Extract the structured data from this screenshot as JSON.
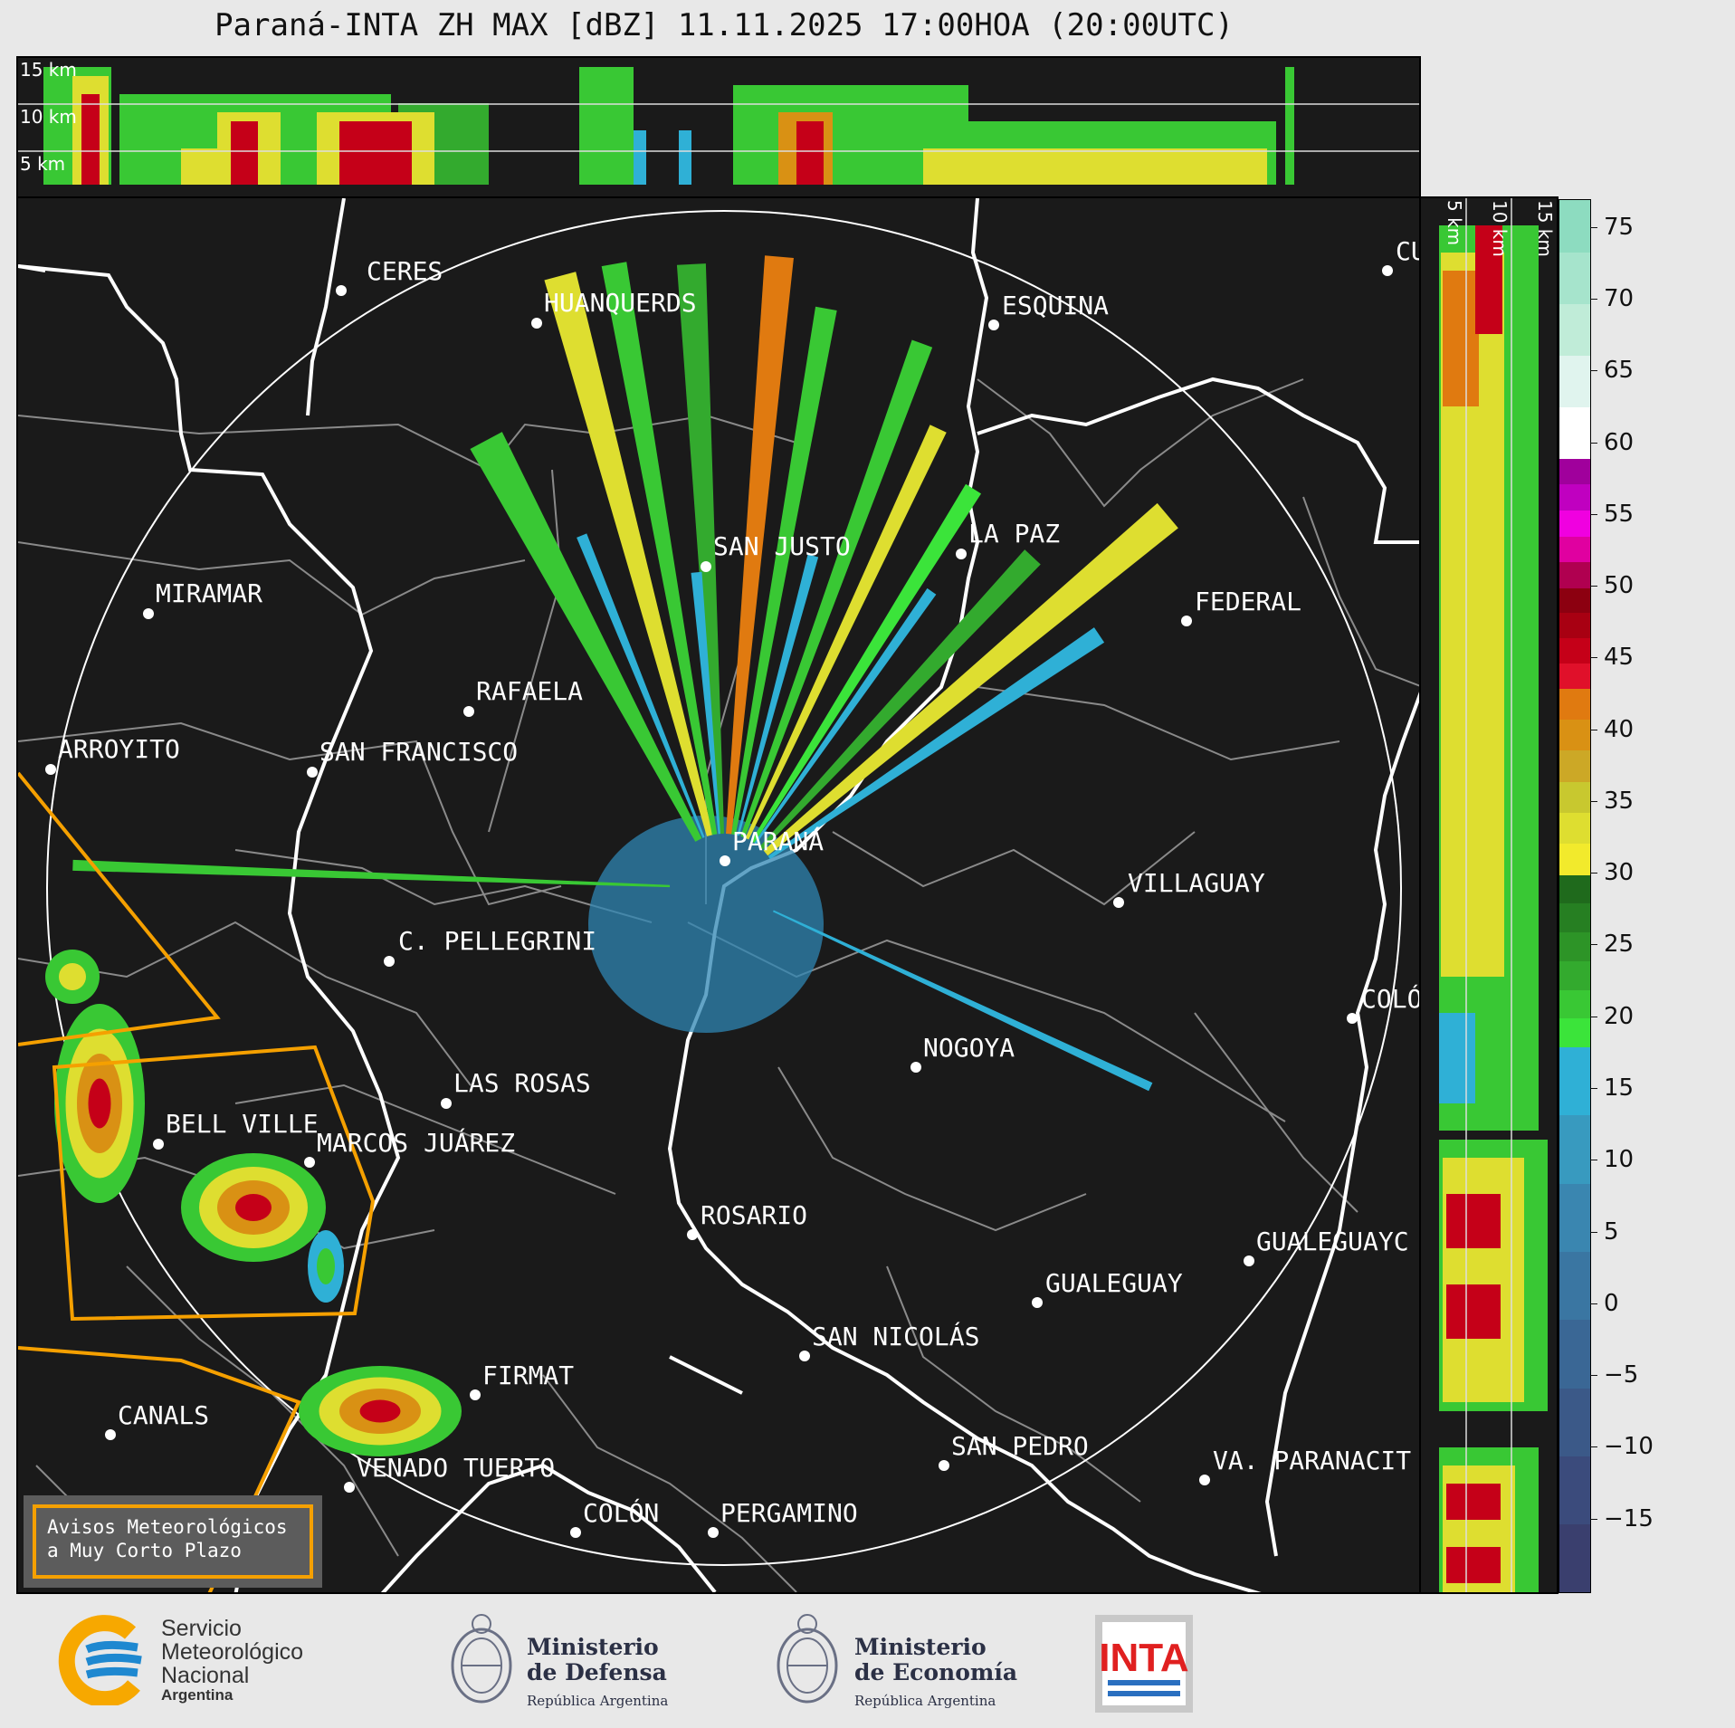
{
  "title": "Paraná-INTA ZH MAX [dBZ] 11.11.2025 17:00HOA (20:00UTC)",
  "height_labels_top": [
    "15 km",
    "10 km",
    "5 km"
  ],
  "height_labels_side": [
    "5 km",
    "10 km",
    "15 km"
  ],
  "cities": [
    {
      "name": "CERES"
    },
    {
      "name": "HUANQUERDS"
    },
    {
      "name": "ESQUINA"
    },
    {
      "name": "CU"
    },
    {
      "name": "SAN JUSTO"
    },
    {
      "name": "LA PAZ"
    },
    {
      "name": "MIRAMAR"
    },
    {
      "name": "FEDERAL"
    },
    {
      "name": "RAFAELA"
    },
    {
      "name": "ARROYITO"
    },
    {
      "name": "SAN FRANCISCO"
    },
    {
      "name": "PARANÁ"
    },
    {
      "name": "VILLAGUAY"
    },
    {
      "name": "C. PELLEGRINI"
    },
    {
      "name": "COLÓ"
    },
    {
      "name": "NOGOYA"
    },
    {
      "name": "LAS ROSAS"
    },
    {
      "name": "BELL VILLE"
    },
    {
      "name": "MARCOS JUÁREZ"
    },
    {
      "name": "ROSARIO"
    },
    {
      "name": "GUALEGUAYC"
    },
    {
      "name": "GUALEGUAY"
    },
    {
      "name": "SAN NICOLÁS"
    },
    {
      "name": "FIRMAT"
    },
    {
      "name": "CANALS"
    },
    {
      "name": "SAN PEDRO"
    },
    {
      "name": "VENADO TUERTO"
    },
    {
      "name": "VA. PARANACIT"
    },
    {
      "name": "COLÓN"
    },
    {
      "name": "PERGAMINO"
    }
  ],
  "colorbar": {
    "ticks": [
      "75",
      "70",
      "65",
      "60",
      "55",
      "50",
      "45",
      "40",
      "35",
      "30",
      "25",
      "20",
      "15",
      "10",
      "5",
      "0",
      "−5",
      "−10",
      "−15"
    ],
    "range": [
      -20,
      77
    ],
    "bands": [
      {
        "from": -20,
        "to": 18,
        "colors": [
          "#3a3f6e",
          "#3b4b7c",
          "#3b5988",
          "#3a6795",
          "#3a76a2",
          "#3a86b0",
          "#389abf",
          "#2fb0d6"
        ]
      },
      {
        "from": 18,
        "to": 30,
        "colors": [
          "#3be43a",
          "#39c834",
          "#33aa2e",
          "#2d9427",
          "#267f22",
          "#1f6a1c"
        ]
      },
      {
        "from": 30,
        "to": 43,
        "colors": [
          "#f2ea2c",
          "#dede30",
          "#c8c82f",
          "#cca826",
          "#d99114",
          "#e07a10"
        ]
      },
      {
        "from": 43,
        "to": 50,
        "colors": [
          "#e0102a",
          "#c50018",
          "#a80012",
          "#8c0010"
        ]
      },
      {
        "from": 50,
        "to": 59,
        "colors": [
          "#b00050",
          "#e000a0",
          "#f000e0",
          "#c000c0",
          "#a0009c"
        ]
      },
      {
        "from": 59,
        "to": 77,
        "colors": [
          "#ffffff",
          "#e0f4ee",
          "#c0ecd8",
          "#a6e4cc",
          "#8ddcc0"
        ]
      }
    ]
  },
  "aviso": {
    "line1": "Avisos Meteorológicos",
    "line2": "a Muy Corto Plazo"
  },
  "logos": {
    "smn": {
      "l1": "Servicio",
      "l2": "Meteorológico",
      "l3": "Nacional",
      "l4": "Argentina"
    },
    "defensa": {
      "l1": "Ministerio",
      "l2": "de Defensa",
      "sub": "República Argentina"
    },
    "economia": {
      "l1": "Ministerio",
      "l2": "de Economía",
      "sub": "República Argentina"
    },
    "inta": {
      "text": "INTA"
    }
  },
  "colors": {
    "background": "#1a1a1a",
    "border_white": "#ffffff",
    "warning_orange": "#f5a000",
    "admin_gray": "#8a8a8a"
  }
}
